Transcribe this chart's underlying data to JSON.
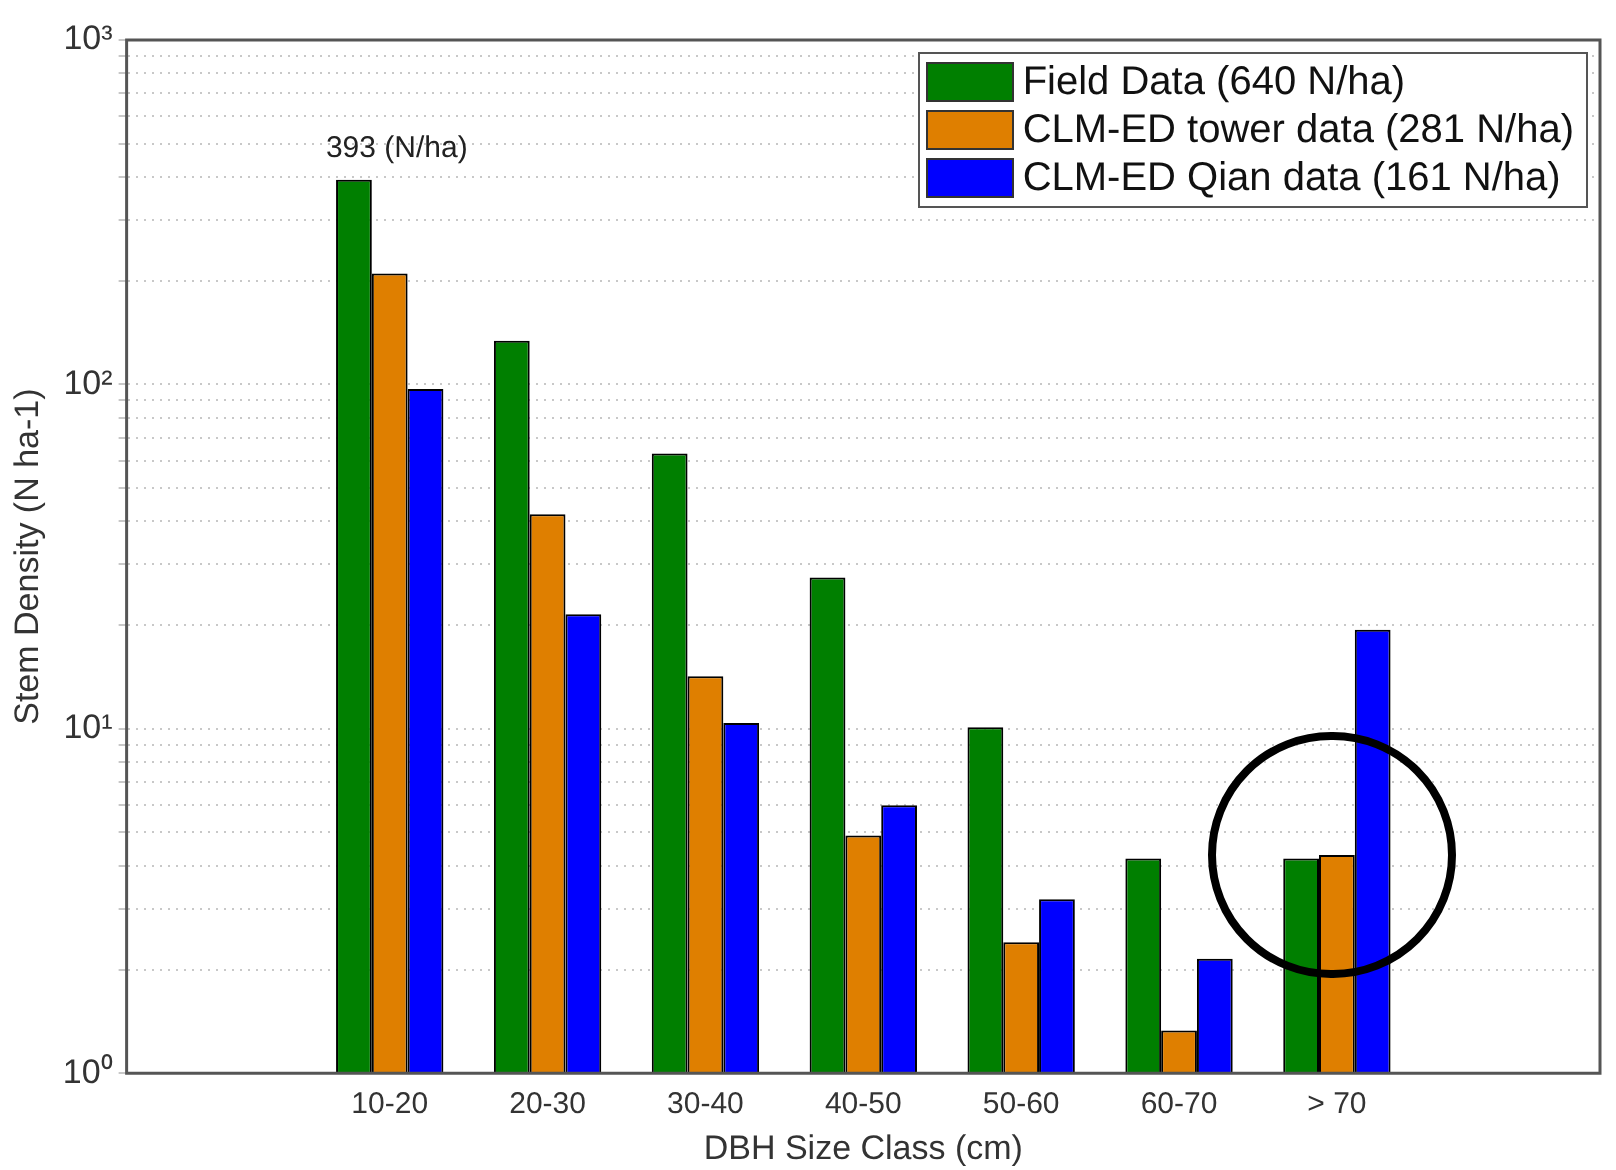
{
  "chart_data": {
    "type": "bar",
    "xlabel": "DBH Size Class (cm)",
    "ylabel": "Stem Density (N ha-1)",
    "categories": [
      "10-20",
      "20-30",
      "30-40",
      "40-50",
      "50-60",
      "60-70",
      "> 70"
    ],
    "series": [
      {
        "name": "Field Data (640 N/ha)",
        "color": "#007f00",
        "values": [
          393,
          134,
          63,
          27.5,
          10.1,
          4.2,
          4.2
        ]
      },
      {
        "name": "CLM-ED tower data (281 N/ha)",
        "color": "#df7f00",
        "values": [
          210,
          42,
          14.2,
          4.9,
          2.4,
          1.33,
          4.3
        ]
      },
      {
        "name": "CLM-ED Qian data (161 N/ha)",
        "color": "#0000ff",
        "values": [
          97,
          21.5,
          10.4,
          6.0,
          3.2,
          2.15,
          19.4
        ]
      }
    ],
    "log": "y",
    "ylim": [
      1,
      1000
    ],
    "yticks": [
      {
        "value": 1,
        "label": "10⁰"
      },
      {
        "value": 2,
        "label": null
      },
      {
        "value": 3,
        "label": null
      },
      {
        "value": 4,
        "label": null
      },
      {
        "value": 5,
        "label": null
      },
      {
        "value": 6,
        "label": null
      },
      {
        "value": 7,
        "label": null
      },
      {
        "value": 8,
        "label": null
      },
      {
        "value": 9,
        "label": null
      },
      {
        "value": 10,
        "label": "10¹"
      },
      {
        "value": 20,
        "label": null
      },
      {
        "value": 30,
        "label": null
      },
      {
        "value": 40,
        "label": null
      },
      {
        "value": 50,
        "label": null
      },
      {
        "value": 60,
        "label": null
      },
      {
        "value": 70,
        "label": null
      },
      {
        "value": 80,
        "label": null
      },
      {
        "value": 90,
        "label": null
      },
      {
        "value": 100,
        "label": "10²"
      },
      {
        "value": 200,
        "label": null
      },
      {
        "value": 300,
        "label": null
      },
      {
        "value": 400,
        "label": null
      },
      {
        "value": 500,
        "label": null
      },
      {
        "value": 600,
        "label": null
      },
      {
        "value": 700,
        "label": null
      },
      {
        "value": 800,
        "label": null
      },
      {
        "value": 900,
        "label": null
      },
      {
        "value": 1000,
        "label": "10³"
      }
    ],
    "grid": "y",
    "legend": "top right",
    "annotations": [
      "393 (N/ha)"
    ]
  }
}
